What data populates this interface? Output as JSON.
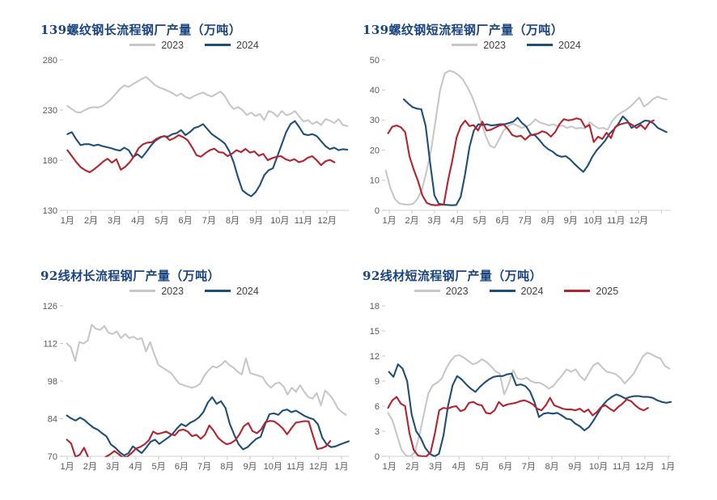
{
  "page": {
    "background": "#FFFFFF"
  },
  "colors": {
    "title": "#1A4480",
    "axis_label": "#595959",
    "axis_line": "#D9D9D9",
    "tick_mark": "#C9C9C9",
    "series": {
      "2023": "#C6C7C9",
      "2024": "#1F4E79",
      "2025": "#B2242F"
    }
  },
  "chart_data": [
    {
      "type": "line",
      "title": "139螺纹钢长流程钢厂产量（万吨）",
      "legend": [
        "2023",
        "2024"
      ],
      "legend_position": "top-center",
      "grid": false,
      "ylim": [
        130,
        280
      ],
      "y_ticks": [
        130,
        180,
        230,
        280
      ],
      "x_labels": [
        "1月",
        "2月",
        "3月",
        "4月",
        "5月",
        "6月",
        "7月",
        "8月",
        "9月",
        "10月",
        "11月",
        "12月"
      ],
      "domain_months": 12.1,
      "series": [
        {
          "name": "2023",
          "x0": 0.015,
          "x1": 0.995,
          "values": [
            234,
            231,
            228,
            227.5,
            230,
            232,
            233,
            232.5,
            234,
            237,
            241,
            246,
            251,
            254.5,
            253,
            256,
            258.5,
            261,
            263,
            259,
            255,
            252.5,
            251,
            249,
            247,
            244,
            246.5,
            243,
            241.5,
            244,
            246,
            247.5,
            245,
            243.5,
            246,
            248.5,
            244,
            236,
            231,
            233,
            230,
            225,
            227.5,
            224,
            226,
            220,
            229,
            227.5,
            223.5,
            229,
            225,
            226,
            229,
            223.5,
            218.5,
            220,
            216,
            218.5,
            215,
            221,
            219.5,
            217,
            221,
            215,
            214
          ]
        },
        {
          "name": "2024",
          "x0": 0.015,
          "x1": 0.995,
          "values": [
            206,
            208,
            201,
            195,
            196,
            196,
            194.5,
            195.5,
            194,
            193,
            192,
            190.5,
            189.5,
            192.5,
            190,
            183,
            186,
            182.5,
            188,
            194,
            199,
            202,
            204,
            203.5,
            206,
            207,
            210,
            205,
            208,
            212,
            213.5,
            216,
            211,
            206,
            203,
            200,
            196.5,
            189,
            178,
            163,
            150,
            146.5,
            144,
            148,
            155,
            165,
            170,
            172,
            184,
            196,
            208,
            216,
            219,
            213,
            206,
            205,
            206,
            204,
            199,
            194,
            191,
            192.5,
            190,
            191,
            190.5
          ]
        },
        {
          "name": "2025",
          "x0": 0.015,
          "x1": 0.95,
          "values": [
            190,
            184,
            178,
            173,
            170,
            168,
            171,
            174.5,
            178.5,
            181.5,
            177.5,
            181,
            170.5,
            173.5,
            178,
            184,
            192,
            196,
            197.5,
            198,
            201.3,
            203.3,
            203.8,
            200,
            202,
            205,
            203,
            200,
            193,
            185,
            183.5,
            187,
            190,
            191.5,
            188,
            187.5,
            184,
            186.6,
            190,
            188,
            191.3,
            187.6,
            188.8,
            184.4,
            186.3,
            180,
            182,
            183.5,
            184,
            181,
            179.4,
            181,
            178,
            179.3,
            182.4,
            184,
            180,
            175,
            179,
            180.3,
            177.8
          ]
        }
      ]
    },
    {
      "type": "line",
      "title": "139螺纹钢短流程钢厂产量（万吨）",
      "legend": [
        "2023",
        "2024"
      ],
      "legend_position": "top-center",
      "grid": false,
      "ylim": [
        0,
        50
      ],
      "y_ticks": [
        0,
        10,
        20,
        30,
        40,
        50
      ],
      "x_labels": [
        "1月",
        "2月",
        "3月",
        "4月",
        "5月",
        "6月",
        "7月",
        "8月",
        "9月",
        "10月",
        "11月",
        "12月"
      ],
      "domain_months": 12.6,
      "series": [
        {
          "name": "2023",
          "x0": 0.002,
          "x1": 0.985,
          "values": [
            13.2,
            7.5,
            3.8,
            2.3,
            2,
            1.9,
            2.1,
            3.8,
            7,
            13,
            20,
            30,
            40,
            45.5,
            46.4,
            46,
            45,
            43.5,
            41,
            38,
            34,
            29.5,
            25,
            21.5,
            20.8,
            23.5,
            26.5,
            28,
            28.8,
            28.2,
            27.4,
            27.8,
            28.6,
            30.3,
            29.2,
            28.8,
            28.2,
            28.6,
            27.9,
            28.2,
            27.4,
            27.9,
            27.2,
            27.4,
            27.2,
            29.3,
            28.2,
            27.2,
            27.4,
            26.8,
            29.7,
            31.4,
            32.5,
            33.3,
            34.5,
            36,
            37.5,
            34.5,
            35.5,
            37,
            37.8,
            37.2,
            36.8
          ]
        },
        {
          "name": "2024",
          "x0": 0.065,
          "x1": 0.985,
          "values": [
            36.9,
            35.5,
            34.3,
            33.8,
            33.6,
            28,
            16,
            5,
            2.2,
            1.9,
            1.8,
            1.7,
            1.8,
            4.5,
            12,
            21,
            26.5,
            28.6,
            28.4,
            28.6,
            28.2,
            28.4,
            28.6,
            28.6,
            29,
            29.5,
            30.8,
            29,
            27.8,
            25.2,
            24.9,
            23.3,
            21.5,
            20.3,
            19.5,
            18.3,
            17.8,
            18,
            16.9,
            15.4,
            14,
            12.8,
            14.8,
            17.7,
            19.9,
            21.5,
            23.2,
            25.5,
            27,
            28.8,
            31.2,
            29.8,
            27.4,
            28.2,
            28.9,
            29.8,
            29.7,
            28.9,
            27.4,
            26.7,
            26
          ]
        },
        {
          "name": "2025",
          "x0": 0.01,
          "x1": 0.94,
          "values": [
            25.6,
            27.8,
            28.2,
            27.6,
            26,
            18,
            13.5,
            9.7,
            5,
            2.5,
            1.9,
            1.7,
            1.8,
            2,
            10,
            16.6,
            24.3,
            28,
            29.8,
            28,
            28.3,
            26.5,
            29.5,
            26.5,
            26.8,
            27.5,
            28.2,
            28.5,
            27,
            25,
            24.5,
            24.8,
            23.5,
            24.8,
            25.2,
            25.5,
            26.3,
            25.8,
            24.5,
            26,
            28.6,
            30.3,
            29.9,
            30.1,
            30.6,
            30.2,
            27.6,
            28.4,
            22.7,
            24.5,
            23.7,
            25.8,
            24,
            27.7,
            28.5,
            28.9,
            29.2,
            28.4,
            27.4,
            28.4,
            27,
            29.2,
            29.9
          ]
        }
      ]
    },
    {
      "type": "line",
      "title": "92线材长流程钢厂产量（万吨）",
      "legend": [
        "2023",
        "2024"
      ],
      "legend_position": "top-center",
      "grid": false,
      "ylim": [
        70,
        126
      ],
      "y_ticks": [
        70,
        84,
        98,
        112,
        126
      ],
      "x_labels": [
        "1月",
        "2月",
        "3月",
        "4月",
        "5月",
        "6月",
        "7月",
        "8月",
        "9月",
        "10月",
        "11月",
        "12月",
        "1月"
      ],
      "domain_months": 12.5,
      "series": [
        {
          "name": "2023",
          "x0": 0.013,
          "x1": 0.99,
          "values": [
            112,
            110.5,
            105.5,
            112.5,
            112,
            113,
            119,
            117.5,
            117,
            118.5,
            116,
            115.5,
            116.5,
            114,
            115.5,
            114,
            114.5,
            113.5,
            114,
            109,
            112.5,
            108,
            104,
            103,
            102,
            101,
            99,
            97,
            96.5,
            96,
            95.5,
            96,
            97,
            100,
            102,
            103.5,
            103,
            104,
            105.5,
            104,
            103,
            101.5,
            100.5,
            106.5,
            101,
            100.5,
            100,
            99.5,
            97,
            95.5,
            97,
            97.5,
            96,
            93,
            95.5,
            94,
            96.5,
            94,
            92,
            91.5,
            93.5,
            89,
            94.5,
            93,
            91,
            88,
            86.5,
            85.4
          ]
        },
        {
          "name": "2024",
          "x0": 0.013,
          "x1": 1.0,
          "values": [
            85.2,
            84.1,
            83.3,
            84.4,
            83.5,
            82,
            80.7,
            79.9,
            78.6,
            77.4,
            74.4,
            73.2,
            71.5,
            70.3,
            71.2,
            73.7,
            72.4,
            71.2,
            73.2,
            75.4,
            76.2,
            74.6,
            75.8,
            77,
            78.3,
            80.4,
            82,
            81.2,
            82.5,
            83.3,
            84.5,
            86.5,
            90,
            92,
            89.5,
            90.5,
            88,
            82,
            78,
            74.5,
            72.6,
            73.4,
            75,
            76.5,
            77.3,
            81.9,
            85.7,
            86,
            85.4,
            87,
            87.4,
            86.4,
            87,
            86,
            85,
            84.3,
            83.8,
            81.9,
            76.9,
            74.4,
            73.4,
            73.7,
            74.4,
            75,
            75.6
          ]
        },
        {
          "name": "2025",
          "x0": 0.013,
          "x1": 0.935,
          "values": [
            76.2,
            74.8,
            69.8,
            70.6,
            73.2,
            69.4,
            68.5,
            68.3,
            68.6,
            69.8,
            70.7,
            72,
            70.8,
            69.5,
            69.9,
            71.2,
            72.9,
            73.5,
            74.5,
            76,
            79.2,
            78.3,
            78.7,
            79.2,
            78.3,
            77.8,
            79.6,
            80,
            79.2,
            77.5,
            78,
            76.5,
            78,
            81.5,
            79.5,
            77,
            75.5,
            74.5,
            74.9,
            76,
            78.2,
            81.2,
            82.4,
            79.4,
            78.6,
            80,
            82.7,
            83.2,
            83,
            81.9,
            80.4,
            78.2,
            80.4,
            82.5,
            82.8,
            83.1,
            83,
            77.7,
            72.7,
            73,
            73.7,
            75.7
          ]
        }
      ]
    },
    {
      "type": "line",
      "title": "92线材短流程钢厂产量（万吨）",
      "legend": [
        "2023",
        "2024",
        "2025"
      ],
      "legend_position": "top-center",
      "grid": false,
      "ylim": [
        0,
        18
      ],
      "y_ticks": [
        0,
        3,
        6,
        9,
        12,
        15,
        18
      ],
      "x_labels": [
        "1月",
        "2月",
        "3月",
        "4月",
        "5月",
        "6月",
        "7月",
        "8月",
        "9月",
        "10月",
        "11月",
        "12月",
        "1月"
      ],
      "domain_months": 12.3,
      "series": [
        {
          "name": "2023",
          "x0": 0.01,
          "x1": 0.995,
          "values": [
            5.2,
            4.3,
            2.5,
            0.8,
            0.1,
            0,
            0.5,
            2.5,
            5,
            7.5,
            8.5,
            8.8,
            9.3,
            10.5,
            11.4,
            12,
            12.1,
            11.8,
            11.4,
            11,
            11.2,
            11.6,
            11.3,
            10.8,
            10.2,
            9.9,
            7.4,
            8.6,
            10.3,
            9.3,
            9.2,
            9.4,
            9,
            8.8,
            8.8,
            8.5,
            8.1,
            8.4,
            9.1,
            9.7,
            10.4,
            10.1,
            10.4,
            9.6,
            9.1,
            10,
            10.9,
            11.2,
            10.6,
            10.1,
            10,
            9.8,
            9.4,
            8.7,
            9.3,
            9.9,
            10.9,
            11.9,
            12.4,
            12.2,
            11.9,
            11.7,
            10.8,
            10.5
          ]
        },
        {
          "name": "2024",
          "x0": 0.013,
          "x1": 1.0,
          "values": [
            10.1,
            9.5,
            11,
            10.5,
            9,
            5,
            3,
            2.2,
            1,
            0.3,
            0,
            0.3,
            2.5,
            6,
            8.5,
            9.6,
            9.2,
            8.6,
            8.1,
            7.7,
            8.3,
            8.8,
            9.2,
            9.5,
            9.6,
            9.6,
            9.8,
            9.9,
            8.5,
            8.6,
            8.4,
            7.8,
            6.5,
            4.7,
            5.1,
            5.2,
            5.1,
            5.2,
            4.9,
            4.5,
            4.4,
            3.9,
            3.6,
            3.1,
            3.5,
            4.3,
            5.2,
            6.1,
            6.7,
            7.1,
            7.4,
            7.2,
            6.9,
            7.1,
            7.2,
            7.2,
            7.1,
            7.1,
            7,
            6.7,
            6.5,
            6.4,
            6.5
          ]
        },
        {
          "name": "2025",
          "x0": 0.01,
          "x1": 0.92,
          "values": [
            5.8,
            6.7,
            7.1,
            6.3,
            6,
            2.8,
            0.8,
            0.1,
            0,
            0,
            0.5,
            2.8,
            5.5,
            5.8,
            5.7,
            5.9,
            6,
            5.4,
            5.6,
            6.4,
            6.5,
            6.2,
            6.1,
            5.2,
            5.1,
            5.5,
            6.5,
            6,
            6.2,
            6.3,
            6.4,
            6.6,
            6.7,
            6.5,
            6.2,
            5.7,
            5.5,
            6.1,
            7,
            6.1,
            5.9,
            5.7,
            5.6,
            5.6,
            5.5,
            5.7,
            5.3,
            5.6,
            4.9,
            5.3,
            5.9,
            6.1,
            5.7,
            5.4,
            5.9,
            6.3,
            6.8,
            6.6,
            6.1,
            5.7,
            5.5,
            5.8
          ]
        }
      ]
    }
  ]
}
